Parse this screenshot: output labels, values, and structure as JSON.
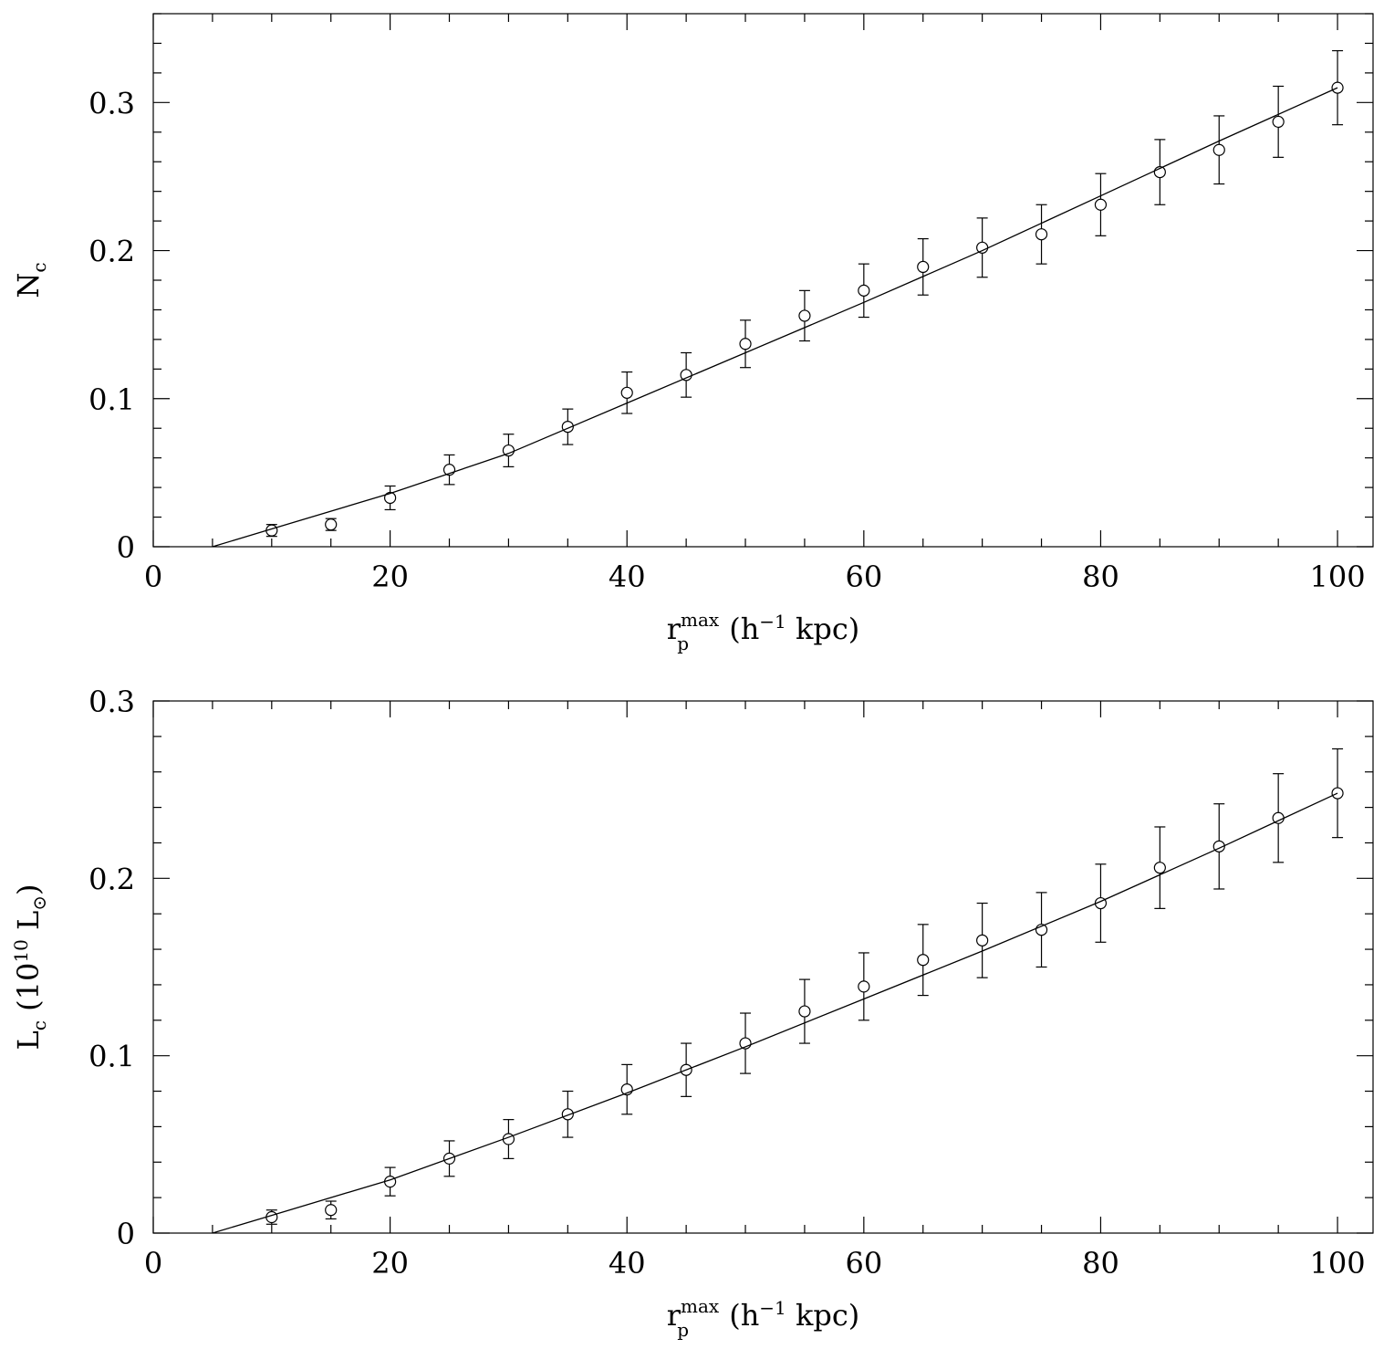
{
  "chart_data": [
    {
      "type": "scatter",
      "xlabel_main": "r",
      "xlabel_sub": "p",
      "xlabel_sup": "max",
      "xlabel_rest": "(h",
      "xlabel_exp": "−1",
      "xlabel_unit": "kpc)",
      "ylabel_main": "N",
      "ylabel_sub": "c",
      "ylabel_rest": "",
      "ylabel_exp": "",
      "ylabel_unit": "",
      "xlim": [
        0,
        103
      ],
      "ylim": [
        0,
        0.36
      ],
      "xticks": [
        0,
        20,
        40,
        60,
        80,
        100
      ],
      "xtick_labels": [
        "0",
        "20",
        "40",
        "60",
        "80",
        "100"
      ],
      "yticks": [
        0,
        0.1,
        0.2,
        0.3
      ],
      "ytick_labels": [
        "0",
        "0.1",
        "0.2",
        "0.3"
      ],
      "x_minor_step": 5,
      "y_minor_step": 0.02,
      "series": [
        {
          "style": "points-with-errorbars",
          "x": [
            10,
            15,
            20,
            25,
            30,
            35,
            40,
            45,
            50,
            55,
            60,
            65,
            70,
            75,
            80,
            85,
            90,
            95,
            100
          ],
          "y": [
            0.011,
            0.015,
            0.033,
            0.052,
            0.065,
            0.081,
            0.104,
            0.116,
            0.137,
            0.156,
            0.173,
            0.189,
            0.202,
            0.211,
            0.231,
            0.253,
            0.268,
            0.287,
            0.31
          ],
          "yerr": [
            0.004,
            0.004,
            0.008,
            0.01,
            0.011,
            0.012,
            0.014,
            0.015,
            0.016,
            0.017,
            0.018,
            0.019,
            0.02,
            0.02,
            0.021,
            0.022,
            0.023,
            0.024,
            0.025
          ]
        },
        {
          "style": "line",
          "x": [
            5,
            10,
            20,
            30,
            40,
            50,
            60,
            70,
            80,
            90,
            100
          ],
          "y": [
            0.0,
            0.012,
            0.036,
            0.063,
            0.097,
            0.131,
            0.165,
            0.2,
            0.237,
            0.274,
            0.31
          ]
        }
      ]
    },
    {
      "type": "scatter",
      "xlabel_main": "r",
      "xlabel_sub": "p",
      "xlabel_sup": "max",
      "xlabel_rest": "(h",
      "xlabel_exp": "−1",
      "xlabel_unit": "kpc)",
      "ylabel_main": "L",
      "ylabel_sub": "c",
      "ylabel_rest": "(10",
      "ylabel_exp": "10",
      "ylabel_unit": "L",
      "ylabel_unit_sub": "⊙",
      "ylabel_close": ")",
      "xlim": [
        0,
        103
      ],
      "ylim": [
        0,
        0.3
      ],
      "xticks": [
        0,
        20,
        40,
        60,
        80,
        100
      ],
      "xtick_labels": [
        "0",
        "20",
        "40",
        "60",
        "80",
        "100"
      ],
      "yticks": [
        0,
        0.1,
        0.2,
        0.3
      ],
      "ytick_labels": [
        "0",
        "0.1",
        "0.2",
        "0.3"
      ],
      "x_minor_step": 5,
      "y_minor_step": 0.02,
      "series": [
        {
          "style": "points-with-errorbars",
          "x": [
            10,
            15,
            20,
            25,
            30,
            35,
            40,
            45,
            50,
            55,
            60,
            65,
            70,
            75,
            80,
            85,
            90,
            95,
            100
          ],
          "y": [
            0.009,
            0.013,
            0.029,
            0.042,
            0.053,
            0.067,
            0.081,
            0.092,
            0.107,
            0.125,
            0.139,
            0.154,
            0.165,
            0.171,
            0.186,
            0.206,
            0.218,
            0.234,
            0.248
          ],
          "yerr": [
            0.004,
            0.005,
            0.008,
            0.01,
            0.011,
            0.013,
            0.014,
            0.015,
            0.017,
            0.018,
            0.019,
            0.02,
            0.021,
            0.021,
            0.022,
            0.023,
            0.024,
            0.025,
            0.025
          ]
        },
        {
          "style": "line",
          "x": [
            5,
            10,
            20,
            30,
            40,
            50,
            60,
            70,
            80,
            90,
            100
          ],
          "y": [
            0.0,
            0.01,
            0.03,
            0.054,
            0.079,
            0.105,
            0.132,
            0.159,
            0.187,
            0.217,
            0.248
          ]
        }
      ]
    }
  ]
}
